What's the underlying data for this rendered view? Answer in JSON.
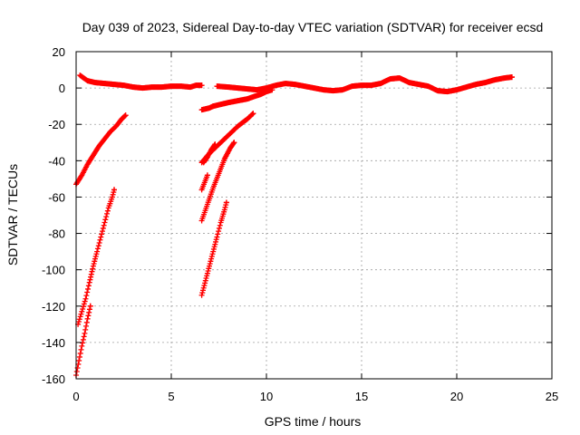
{
  "chart_data": {
    "type": "scatter",
    "title": "Day 039 of 2023, Sidereal Day-to-day VTEC variation (SDTVAR) for receiver ecsd",
    "xlabel": "GPS time / hours",
    "ylabel": "SDTVAR / TECUs",
    "xlim": [
      0,
      25
    ],
    "ylim": [
      -160,
      20
    ],
    "xticks": [
      "0",
      "5",
      "10",
      "15",
      "20",
      "25"
    ],
    "yticks": [
      "20",
      "0",
      "-20",
      "-40",
      "-60",
      "-80",
      "-100",
      "-120",
      "-140",
      "-160"
    ],
    "grid": true,
    "marker": "+",
    "color": "#ff0000",
    "series": [
      {
        "x": [
          0.2,
          0.6,
          1.0,
          1.5,
          2.0,
          2.5,
          3.0,
          3.5,
          4.0,
          4.5,
          5.0,
          5.5,
          6.0,
          6.3,
          6.6
        ],
        "y": [
          7,
          4,
          3,
          2.5,
          2,
          1.5,
          0.5,
          0,
          0.5,
          0.5,
          1,
          1,
          0.5,
          1.5,
          1.5
        ]
      },
      {
        "x": [
          0.0,
          0.3,
          0.6,
          0.9,
          1.2,
          1.5,
          1.8,
          2.1,
          2.4,
          2.6
        ],
        "y": [
          -53,
          -48,
          -42,
          -37,
          -32,
          -28,
          -24,
          -21,
          -17,
          -15
        ]
      },
      {
        "x": [
          0.1,
          0.3,
          0.5,
          0.7,
          0.9,
          1.1,
          1.3,
          1.5,
          1.7,
          1.9,
          2.0
        ],
        "y": [
          -130,
          -123,
          -116,
          -107,
          -98,
          -90,
          -82,
          -74,
          -66,
          -60,
          -56
        ]
      },
      {
        "x": [
          0.0,
          0.15,
          0.3,
          0.45,
          0.6,
          0.75
        ],
        "y": [
          -158,
          -150,
          -142,
          -135,
          -127,
          -120
        ]
      },
      {
        "x": [
          6.6,
          6.8,
          7.0,
          7.2
        ],
        "y": [
          -12,
          -11.5,
          -11,
          -10
        ]
      },
      {
        "x": [
          7.2,
          7.6,
          8.0,
          8.5,
          9.0,
          9.4,
          9.7,
          10.0,
          10.3
        ],
        "y": [
          -10,
          -9,
          -8,
          -7,
          -6,
          -4.5,
          -3.5,
          -2,
          -1
        ]
      },
      {
        "x": [
          7.4,
          8.0,
          8.5,
          9.0,
          9.5,
          10.0,
          10.5,
          11.0,
          11.5,
          12.0,
          12.5,
          13.0,
          13.5,
          14.0,
          14.5,
          15.0,
          15.5,
          16.0,
          16.5,
          17.0,
          17.5,
          18.0,
          18.5,
          19.0,
          19.5,
          20.0,
          20.5,
          21.0,
          21.5,
          22.0,
          22.5,
          22.9
        ],
        "y": [
          1,
          0.5,
          0,
          -0.5,
          -1,
          0,
          1.5,
          2.5,
          2,
          1,
          0,
          -1,
          -1.5,
          -1,
          1,
          1.5,
          1.5,
          2.5,
          5,
          5.5,
          3,
          2,
          1,
          -1.5,
          -2,
          -1,
          0.5,
          2,
          3,
          4.5,
          5.5,
          6
        ]
      },
      {
        "x": [
          6.7,
          6.9,
          7.1,
          7.3
        ],
        "y": [
          -41,
          -38,
          -34,
          -31
        ]
      },
      {
        "x": [
          6.6,
          6.75,
          6.9
        ],
        "y": [
          -56,
          -52,
          -48
        ]
      },
      {
        "x": [
          6.6,
          7.0,
          7.5,
          8.0,
          8.5,
          9.0,
          9.3
        ],
        "y": [
          -41,
          -36,
          -31,
          -26,
          -21,
          -17,
          -14
        ]
      },
      {
        "x": [
          6.6,
          6.9,
          7.2,
          7.5,
          7.8,
          8.1,
          8.3
        ],
        "y": [
          -73,
          -64,
          -55,
          -47,
          -39,
          -33,
          -30
        ]
      },
      {
        "x": [
          6.6,
          6.8,
          7.0,
          7.2,
          7.4,
          7.6,
          7.8,
          7.9
        ],
        "y": [
          -114,
          -106,
          -98,
          -90,
          -82,
          -74,
          -67,
          -63
        ]
      }
    ]
  }
}
